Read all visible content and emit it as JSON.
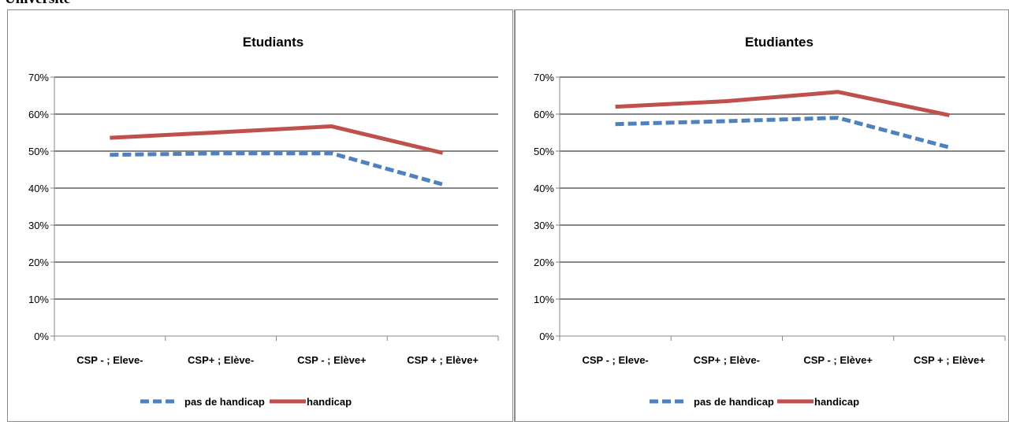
{
  "header": {
    "title": "Université"
  },
  "chart_data": [
    {
      "type": "line",
      "title": "Etudiants",
      "categories": [
        "CSP - ; Eleve-",
        "CSP+ ; Elève-",
        "CSP - ; Elève+",
        "CSP + ; Elève+"
      ],
      "series": [
        {
          "name": "pas de handicap",
          "values": [
            0.49,
            0.494,
            0.494,
            0.41
          ],
          "color": "#4f81bd",
          "style": "dashed"
        },
        {
          "name": "handicap",
          "values": [
            0.536,
            0.551,
            0.567,
            0.495
          ],
          "color": "#c0504d",
          "style": "solid"
        }
      ],
      "ylim": [
        0,
        0.7
      ],
      "yticks": [
        "0%",
        "10%",
        "20%",
        "30%",
        "40%",
        "50%",
        "60%",
        "70%"
      ],
      "grid": true,
      "legend": "bottom"
    },
    {
      "type": "line",
      "title": "Etudiantes",
      "categories": [
        "CSP - ; Eleve-",
        "CSP+ ; Elève-",
        "CSP - ; Elève+",
        "CSP + ; Elève+"
      ],
      "series": [
        {
          "name": "pas de handicap",
          "values": [
            0.573,
            0.581,
            0.59,
            0.51
          ],
          "color": "#4f81bd",
          "style": "dashed"
        },
        {
          "name": "handicap",
          "values": [
            0.62,
            0.635,
            0.66,
            0.597
          ],
          "color": "#c0504d",
          "style": "solid"
        }
      ],
      "ylim": [
        0,
        0.7
      ],
      "yticks": [
        "0%",
        "10%",
        "20%",
        "30%",
        "40%",
        "50%",
        "60%",
        "70%"
      ],
      "grid": true,
      "legend": "bottom"
    }
  ]
}
